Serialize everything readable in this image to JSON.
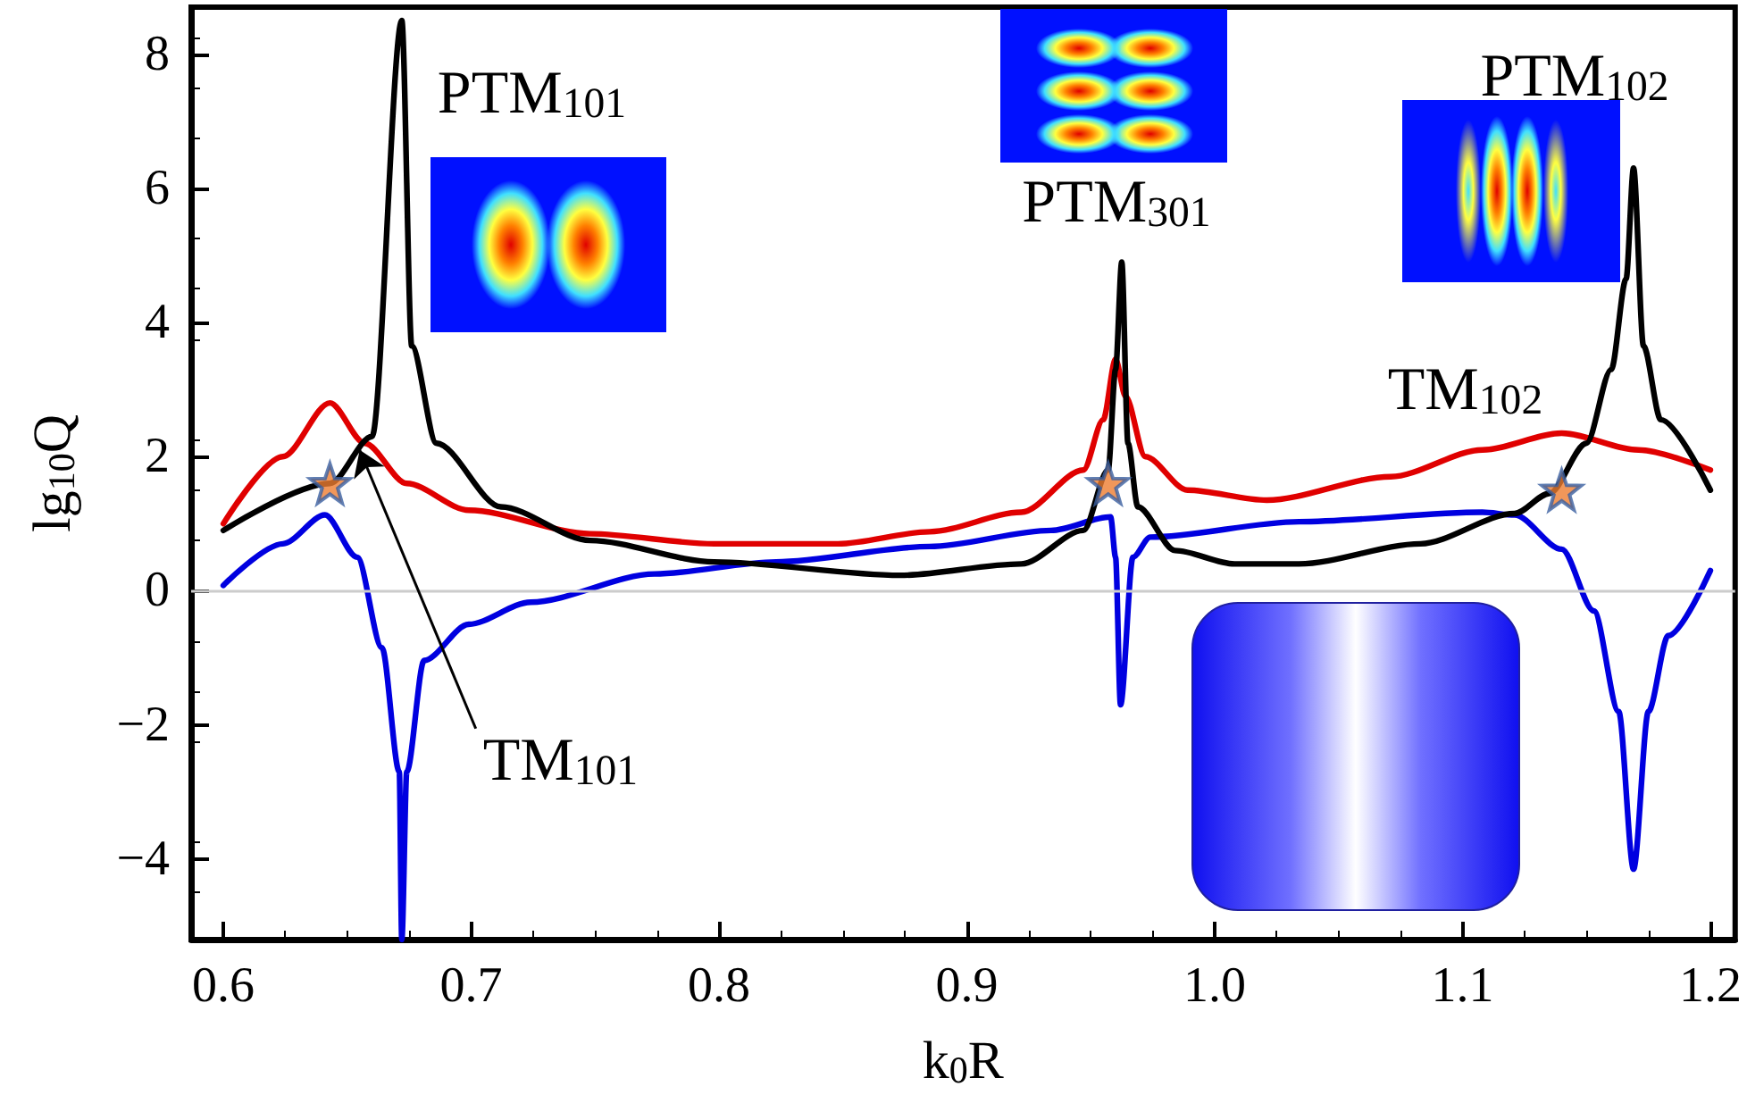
{
  "chart_data": {
    "type": "line",
    "xlabel": "k$_{0}$R",
    "ylabel": "lg$_{10}$Q",
    "xlim": [
      0.587,
      1.21
    ],
    "xticks": [
      0.6,
      0.7,
      0.8,
      0.9,
      {
        "value": 1,
        "label": "1.0"
      },
      1.1,
      1.2
    ],
    "ylim": [
      -5.2,
      8.7
    ],
    "yticks": [
      {
        "value": -4,
        "label": "−4"
      },
      {
        "value": -2,
        "label": "−2"
      },
      0,
      2,
      4,
      6,
      8
    ],
    "grid": false,
    "ref_lines": [
      {
        "axis": "y",
        "value": 0,
        "color": "#cccccc"
      }
    ],
    "annotations": [
      {
        "text": "PTM$_{101}$",
        "x": 0.672,
        "y": 8.5
      },
      {
        "text": "PTM$_{301}$",
        "x": 0.9625,
        "y": 4.9
      },
      {
        "text": "PTM$_{102}$",
        "x": 1.169,
        "y": 6.3
      },
      {
        "text": "TM$_{101}$",
        "x": 0.655,
        "y": 2.1
      },
      {
        "text": "TM$_{102}$",
        "x": 1.14,
        "y": 2.35
      }
    ],
    "series": [
      {
        "type": "line",
        "color": "#e00000",
        "x": [
          0.6,
          0.624,
          0.643,
          0.657,
          0.674,
          0.699,
          0.748,
          0.798,
          0.848,
          0.885,
          0.922,
          0.947,
          0.955,
          0.96,
          0.964,
          0.972,
          0.989,
          1.021,
          1.071,
          1.108,
          1.14,
          1.171,
          1.2
        ],
        "values": [
          1.0,
          2.0,
          2.8,
          2.2,
          1.6,
          1.2,
          0.85,
          0.7,
          0.7,
          0.88,
          1.17,
          1.8,
          2.55,
          3.45,
          2.9,
          2.0,
          1.5,
          1.35,
          1.7,
          2.1,
          2.35,
          2.1,
          1.8
        ]
      },
      {
        "type": "line",
        "color": "#0000e0",
        "x": [
          0.6,
          0.624,
          0.641,
          0.654,
          0.664,
          0.671,
          0.672,
          0.674,
          0.681,
          0.699,
          0.724,
          0.774,
          0.823,
          0.885,
          0.934,
          0.958,
          0.96,
          0.962,
          0.967,
          0.974,
          1.034,
          1.108,
          1.121,
          1.14,
          1.153,
          1.163,
          1.169,
          1.175,
          1.183,
          1.2
        ],
        "values": [
          0.08,
          0.7,
          1.13,
          0.5,
          -0.85,
          -2.7,
          -5.2,
          -2.7,
          -1.04,
          -0.5,
          -0.17,
          0.25,
          0.43,
          0.66,
          0.9,
          1.1,
          0.5,
          -1.7,
          0.5,
          0.8,
          1.03,
          1.17,
          1.13,
          0.62,
          -0.3,
          -1.8,
          -4.15,
          -1.8,
          -0.67,
          0.3
        ]
      },
      {
        "type": "line",
        "color": "#000000",
        "x": [
          0.6,
          0.643,
          0.66,
          0.672,
          0.676,
          0.686,
          0.712,
          0.748,
          0.798,
          0.873,
          0.922,
          0.947,
          0.957,
          0.96,
          0.9625,
          0.965,
          0.969,
          0.984,
          1.008,
          1.034,
          1.083,
          1.121,
          1.135,
          1.15,
          1.16,
          1.166,
          1.169,
          1.173,
          1.18,
          1.2
        ],
        "values": [
          0.9,
          1.6,
          2.3,
          8.5,
          3.65,
          2.2,
          1.25,
          0.75,
          0.43,
          0.23,
          0.4,
          0.9,
          1.8,
          3.3,
          4.9,
          2.2,
          1.25,
          0.6,
          0.4,
          0.4,
          0.7,
          1.15,
          1.45,
          2.2,
          3.3,
          4.65,
          6.3,
          3.65,
          2.55,
          1.5
        ]
      },
      {
        "type": "scatter",
        "marker": "star",
        "color": "#ed7d31",
        "x": [
          0.643,
          0.957,
          1.14
        ],
        "values": [
          1.6,
          1.6,
          1.5
        ]
      }
    ]
  }
}
